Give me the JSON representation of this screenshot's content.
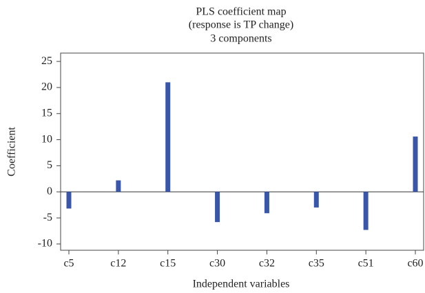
{
  "chart_data": {
    "type": "bar",
    "title": [
      "PLS coefficient map",
      "(response is TP change)",
      "3 components"
    ],
    "xlabel": "Independent variables",
    "ylabel": "Coefficient",
    "categories": [
      "c5",
      "c12",
      "c15",
      "c30",
      "c32",
      "c35",
      "c51",
      "c60"
    ],
    "values": [
      -3.2,
      2.2,
      21,
      -5.8,
      -4.1,
      -3,
      -7.3,
      10.6
    ],
    "color": "#3a56a8",
    "ylim": [
      -11.2,
      26.6
    ],
    "yticks": [
      -10,
      -5,
      0,
      5,
      10,
      15,
      20,
      25
    ],
    "grid": false
  }
}
